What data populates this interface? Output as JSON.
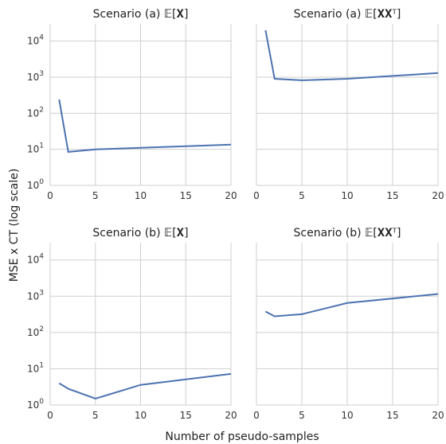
{
  "figure": {
    "ylabel": "MSE x CT (log scale)",
    "xlabel": "Number of pseudo-samples"
  },
  "colors": {
    "series": "#4c72b0",
    "grid": "#cfcfcf",
    "text": "#222222"
  },
  "chart_data": [
    {
      "type": "line",
      "title": "Scenario (a) 𝔼[𝐗]",
      "y_scale": "log",
      "ylim": [
        1,
        30000
      ],
      "xlim": [
        0,
        20
      ],
      "xticks": [
        0,
        5,
        10,
        15,
        20
      ],
      "yticks": [
        1,
        10,
        100,
        1000,
        10000
      ],
      "grid": true,
      "series": [
        {
          "x": [
            1,
            2,
            5,
            10,
            20
          ],
          "y": [
            240,
            8.5,
            10,
            11,
            13.5
          ]
        }
      ]
    },
    {
      "type": "line",
      "title": "Scenario (a) 𝔼[𝐗𝐗ᵀ]",
      "y_scale": "log",
      "ylim": [
        1,
        30000
      ],
      "xlim": [
        0,
        20
      ],
      "xticks": [
        0,
        5,
        10,
        15,
        20
      ],
      "yticks": [
        1,
        10,
        100,
        1000,
        10000
      ],
      "grid": true,
      "series": [
        {
          "x": [
            1,
            2,
            5,
            10,
            20
          ],
          "y": [
            20000,
            900,
            820,
            900,
            1300
          ]
        }
      ]
    },
    {
      "type": "line",
      "title": "Scenario (b) 𝔼[𝐗]",
      "y_scale": "log",
      "ylim": [
        1,
        30000
      ],
      "xlim": [
        0,
        20
      ],
      "xticks": [
        0,
        5,
        10,
        15,
        20
      ],
      "yticks": [
        1,
        10,
        100,
        1000,
        10000
      ],
      "grid": true,
      "series": [
        {
          "x": [
            1,
            2,
            5,
            10,
            20
          ],
          "y": [
            4,
            2.8,
            1.5,
            3.6,
            7.2
          ]
        }
      ]
    },
    {
      "type": "line",
      "title": "Scenario (b) 𝔼[𝐗𝐗ᵀ]",
      "y_scale": "log",
      "ylim": [
        1,
        30000
      ],
      "xlim": [
        0,
        20
      ],
      "xticks": [
        0,
        5,
        10,
        15,
        20
      ],
      "yticks": [
        1,
        10,
        100,
        1000,
        10000
      ],
      "grid": true,
      "series": [
        {
          "x": [
            1,
            2,
            5,
            10,
            20
          ],
          "y": [
            380,
            280,
            320,
            650,
            1150
          ]
        }
      ]
    }
  ]
}
